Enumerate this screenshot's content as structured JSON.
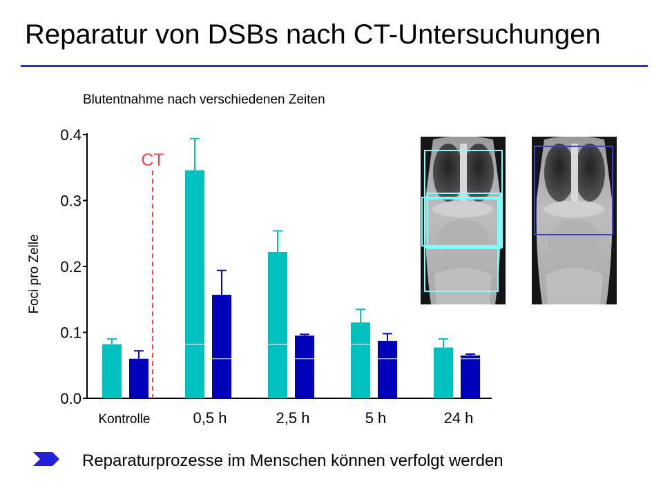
{
  "title": "Reparatur von DSBs nach CT-Untersuchungen",
  "subtitle": "Blutentnahme nach verschiedenen Zeiten",
  "conclusion": "Reparaturprozesse im Menschen können verfolgt werden",
  "colors": {
    "teal": "#00c0c0",
    "blue": "#0000b8",
    "ct_marker": "#ff4040",
    "title_rule": "#3333b0",
    "scan_box_light": "#80ffff",
    "scan_box_dark": "#4040d0"
  },
  "icons": [
    "arrow-bullet-icon",
    "chest-xray-image",
    "chest-xray-image"
  ],
  "chart_data": {
    "type": "bar",
    "ylabel": "Foci pro Zelle",
    "ylim": [
      0,
      0.4
    ],
    "yticks": [
      "0.0",
      "0.1",
      "0.2",
      "0.3",
      "0.4"
    ],
    "categories": [
      "Kontrolle",
      "0,5 h",
      "2,5 h",
      "5 h",
      "24 h"
    ],
    "series": [
      {
        "values": [
          0.082,
          0.346,
          0.222,
          0.115,
          0.077
        ],
        "errors": [
          0.008,
          0.048,
          0.032,
          0.02,
          0.013
        ]
      },
      {
        "values": [
          0.06,
          0.157,
          0.095,
          0.087,
          0.065
        ],
        "errors": [
          0.012,
          0.037,
          0.002,
          0.011,
          0.002
        ]
      }
    ],
    "annotation": {
      "label": "CT",
      "position": "between Kontrolle and 0,5 h"
    },
    "grid": false,
    "legend": "none"
  }
}
